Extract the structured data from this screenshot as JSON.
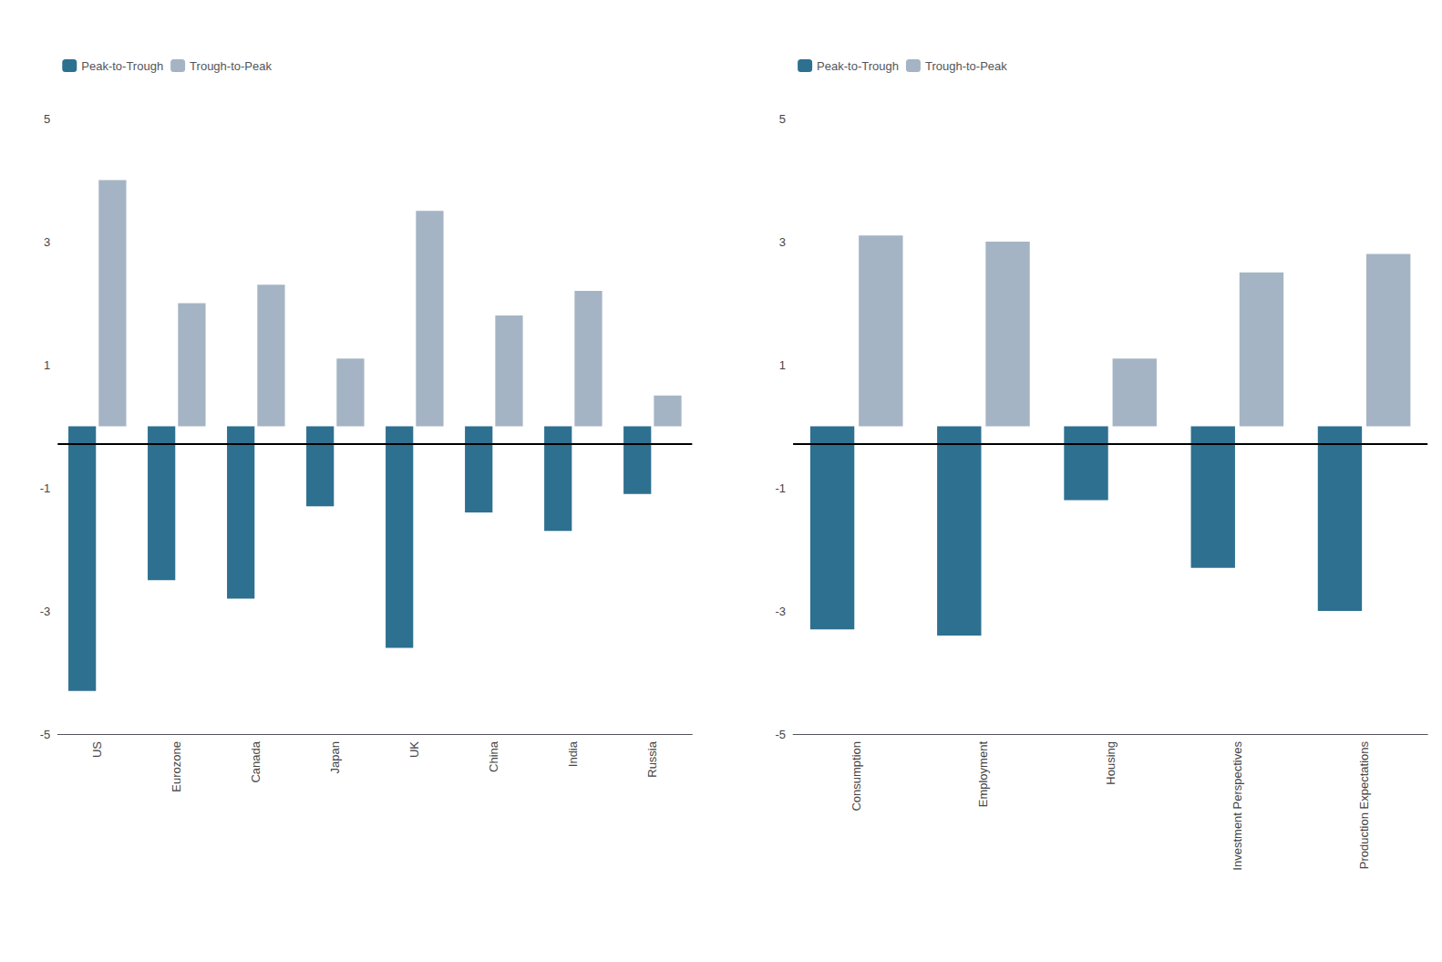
{
  "chart_data": [
    {
      "type": "bar",
      "categories": [
        "US",
        "Eurozone",
        "Canada",
        "Japan",
        "UK",
        "China",
        "India",
        "Russia"
      ],
      "series": [
        {
          "name": "Peak-to-Trough",
          "color": "#2e7090",
          "values": [
            -4.3,
            -2.5,
            -2.8,
            -1.3,
            -3.6,
            -1.4,
            -1.7,
            -1.1
          ]
        },
        {
          "name": "Trough-to-Peak",
          "color": "#a4b4c4",
          "values": [
            4.0,
            2.0,
            2.3,
            1.1,
            3.5,
            1.8,
            2.2,
            0.5
          ]
        }
      ],
      "ylim": [
        -5,
        5
      ],
      "yticks": [
        -5,
        -3,
        -1,
        1,
        3,
        5
      ],
      "grid": false,
      "legend": "upper left",
      "hline": -0.28
    },
    {
      "type": "bar",
      "categories": [
        "Consumption",
        "Employment",
        "Housing",
        "Investment Perspectives",
        "Production Expectations"
      ],
      "series": [
        {
          "name": "Peak-to-Trough",
          "color": "#2e7090",
          "values": [
            -3.3,
            -3.4,
            -1.2,
            -2.3,
            -3.0
          ]
        },
        {
          "name": "Trough-to-Peak",
          "color": "#a4b4c4",
          "values": [
            3.1,
            3.0,
            1.1,
            2.5,
            2.8
          ]
        }
      ],
      "ylim": [
        -5,
        5
      ],
      "yticks": [
        -5,
        -3,
        -1,
        1,
        3,
        5
      ],
      "grid": false,
      "legend": "upper left",
      "hline": -0.28
    }
  ]
}
